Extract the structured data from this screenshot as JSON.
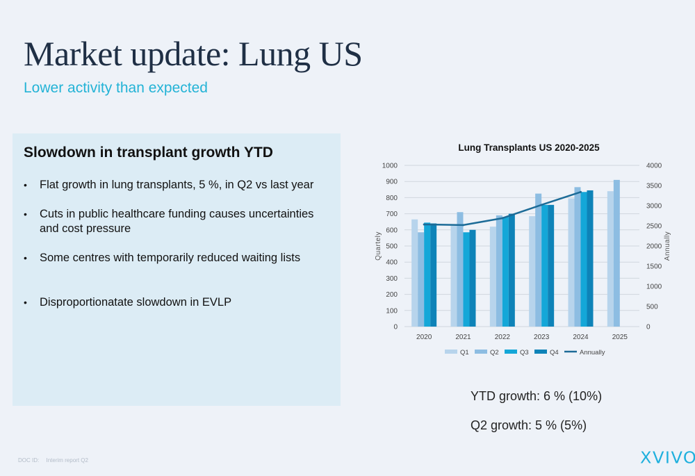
{
  "header": {
    "title": "Market update: Lung US",
    "subtitle": "Lower activity than expected"
  },
  "panel": {
    "heading": "Slowdown in transplant growth YTD",
    "bullets": [
      "Flat growth in lung transplants, 5 %, in Q2 vs last year",
      "Cuts in public healthcare funding causes uncertainties and cost pressure",
      "Some centres with temporarily reduced waiting lists",
      "Disproportionatate slowdown in EVLP"
    ]
  },
  "growth": {
    "ytd": "YTD growth: 6 % (10%)",
    "q2": "Q2 growth: 5 % (5%)"
  },
  "footer": {
    "doc_id": "DOC ID:",
    "doc_name": "Interim report Q2"
  },
  "logo": {
    "text": "XVIVO"
  },
  "colors": {
    "title": "#1f2f45",
    "accent": "#23b3d6",
    "panel_bg": "#dcecf5",
    "q1": "#b7d4ec",
    "q2": "#8dbde2",
    "q3": "#14a7d8",
    "q4": "#0e83b8",
    "annual": "#1c6b97"
  },
  "chart_data": {
    "type": "bar",
    "title": "Lung Transplants US 2020-2025",
    "ylabel": "Quartely",
    "y2label": "Annually",
    "categories": [
      "2020",
      "2021",
      "2022",
      "2023",
      "2024",
      "2025"
    ],
    "ylim": [
      0,
      1000
    ],
    "y2lim": [
      0,
      4000
    ],
    "yticks": [
      0,
      100,
      200,
      300,
      400,
      500,
      600,
      700,
      800,
      900,
      1000
    ],
    "y2ticks": [
      0,
      500,
      1000,
      1500,
      2000,
      2500,
      3000,
      3500,
      4000
    ],
    "grid": true,
    "legend_position": "bottom",
    "series": [
      {
        "name": "Q1",
        "type": "bar",
        "axis": "left",
        "values": [
          665,
          625,
          620,
          685,
          795,
          840
        ]
      },
      {
        "name": "Q2",
        "type": "bar",
        "axis": "left",
        "values": [
          585,
          710,
          690,
          825,
          865,
          910
        ]
      },
      {
        "name": "Q3",
        "type": "bar",
        "axis": "left",
        "values": [
          645,
          585,
          680,
          755,
          835,
          null
        ]
      },
      {
        "name": "Q4",
        "type": "bar",
        "axis": "left",
        "values": [
          640,
          600,
          700,
          755,
          845,
          null
        ]
      },
      {
        "name": "Annually",
        "type": "line",
        "axis": "right",
        "values": [
          2535,
          2520,
          2690,
          3020,
          3340,
          null
        ]
      }
    ]
  }
}
